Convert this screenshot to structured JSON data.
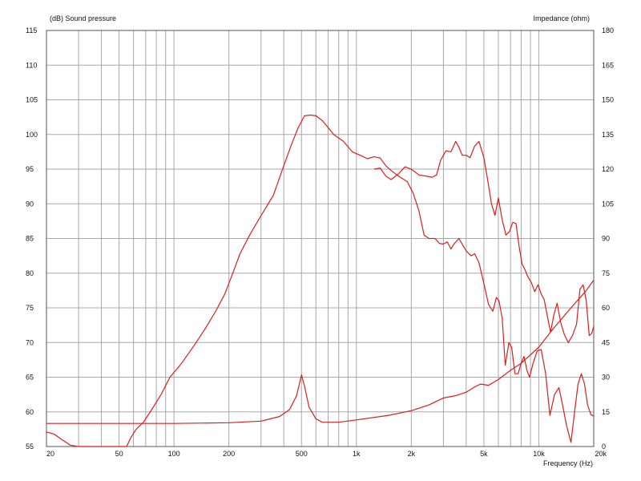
{
  "chart_data": {
    "type": "line",
    "left_axis_title": "(dB)  Sound pressure",
    "right_axis_title": "Impedance  (ohm)",
    "xlabel": "Frequency  (Hz)",
    "x_scale": "log",
    "xlim": [
      20,
      20000
    ],
    "ylim": [
      55,
      115
    ],
    "y2lim": [
      0,
      180
    ],
    "grid": true,
    "line_color": "#d81e1e",
    "grid_color": "#a8a8a8",
    "x_ticks": [
      {
        "value": 20,
        "label": "20"
      },
      {
        "value": 50,
        "label": "50"
      },
      {
        "value": 100,
        "label": "100"
      },
      {
        "value": 200,
        "label": "200"
      },
      {
        "value": 500,
        "label": "500"
      },
      {
        "value": 1000,
        "label": "1k"
      },
      {
        "value": 2000,
        "label": "2k"
      },
      {
        "value": 5000,
        "label": "5k"
      },
      {
        "value": 10000,
        "label": "10k"
      },
      {
        "value": 20000,
        "label": "20k"
      }
    ],
    "y_ticks": [
      "115",
      "110",
      "105",
      "100",
      "95",
      "90",
      "85",
      "80",
      "75",
      "70",
      "65",
      "60",
      "55"
    ],
    "y2_ticks": [
      "180",
      "165",
      "150",
      "135",
      "120",
      "105",
      "90",
      "75",
      "60",
      "45",
      "30",
      "15",
      "0"
    ],
    "series": [
      {
        "axis": "left",
        "points": [
          [
            20,
            57.1
          ],
          [
            22,
            56.8
          ],
          [
            24,
            56.1
          ],
          [
            27,
            55.2
          ],
          [
            30,
            55
          ],
          [
            40,
            55
          ],
          [
            55,
            55
          ],
          [
            58,
            56.3
          ],
          [
            62,
            57.5
          ],
          [
            68,
            58.5
          ],
          [
            75,
            60.2
          ],
          [
            85,
            62.5
          ],
          [
            95,
            65
          ],
          [
            110,
            67
          ],
          [
            130,
            69.7
          ],
          [
            150,
            72.2
          ],
          [
            170,
            74.6
          ],
          [
            190,
            77
          ],
          [
            210,
            80
          ],
          [
            230,
            82.8
          ],
          [
            260,
            85.5
          ],
          [
            300,
            88.3
          ],
          [
            350,
            91.2
          ],
          [
            400,
            95.5
          ],
          [
            440,
            98.5
          ],
          [
            480,
            101
          ],
          [
            520,
            102.7
          ],
          [
            560,
            102.8
          ],
          [
            600,
            102.7
          ],
          [
            650,
            102
          ],
          [
            700,
            101
          ],
          [
            750,
            100
          ],
          [
            850,
            99
          ],
          [
            950,
            97.5
          ],
          [
            1050,
            97
          ],
          [
            1150,
            96.5
          ],
          [
            1250,
            96.8
          ],
          [
            1350,
            96.6
          ],
          [
            1450,
            95.5
          ],
          [
            1550,
            94.8
          ],
          [
            1700,
            94
          ],
          [
            1900,
            93.2
          ],
          [
            2050,
            91.5
          ],
          [
            2200,
            89
          ],
          [
            2350,
            85.5
          ],
          [
            2500,
            85
          ],
          [
            2700,
            85
          ],
          [
            2850,
            84.3
          ],
          [
            3000,
            84.2
          ],
          [
            3150,
            84.5
          ],
          [
            3300,
            83.5
          ],
          [
            3450,
            84.3
          ],
          [
            3650,
            85
          ],
          [
            3800,
            84.2
          ],
          [
            4000,
            83.2
          ],
          [
            4250,
            82.5
          ],
          [
            4450,
            82.8
          ],
          [
            4700,
            81.5
          ],
          [
            5000,
            78.5
          ],
          [
            5300,
            75.5
          ],
          [
            5600,
            74.5
          ],
          [
            5850,
            76.5
          ],
          [
            6050,
            76
          ],
          [
            6300,
            73.5
          ],
          [
            6550,
            66.7
          ],
          [
            6850,
            70
          ],
          [
            7100,
            69.3
          ],
          [
            7400,
            65.5
          ],
          [
            7700,
            65.5
          ],
          [
            8000,
            67
          ],
          [
            8300,
            68
          ],
          [
            8600,
            66
          ],
          [
            8900,
            65
          ],
          [
            9300,
            67
          ],
          [
            9800,
            68.8
          ],
          [
            10300,
            69
          ],
          [
            10900,
            65.5
          ],
          [
            11500,
            59.5
          ],
          [
            12200,
            62.5
          ],
          [
            12900,
            63.5
          ],
          [
            13500,
            61
          ],
          [
            14200,
            58
          ],
          [
            15000,
            55.6
          ],
          [
            15700,
            60
          ],
          [
            16400,
            64
          ],
          [
            17100,
            65.5
          ],
          [
            17800,
            64
          ],
          [
            18500,
            61
          ],
          [
            19300,
            59.6
          ],
          [
            20000,
            59.4
          ]
        ]
      },
      {
        "axis": "right",
        "points": [
          [
            20,
            10
          ],
          [
            100,
            10
          ],
          [
            200,
            10.3
          ],
          [
            300,
            11
          ],
          [
            380,
            13
          ],
          [
            430,
            16
          ],
          [
            470,
            22
          ],
          [
            500,
            31
          ],
          [
            520,
            26
          ],
          [
            550,
            17
          ],
          [
            600,
            12
          ],
          [
            650,
            10.5
          ],
          [
            800,
            10.5
          ],
          [
            1000,
            11.5
          ],
          [
            1500,
            13.5
          ],
          [
            2000,
            15.5
          ],
          [
            2500,
            18
          ],
          [
            3000,
            21
          ],
          [
            3500,
            22
          ],
          [
            4000,
            23.5
          ],
          [
            4500,
            26
          ],
          [
            4800,
            27
          ],
          [
            5300,
            26.5
          ],
          [
            6000,
            29
          ],
          [
            7000,
            33
          ],
          [
            8000,
            36
          ],
          [
            10000,
            43
          ],
          [
            12000,
            51
          ],
          [
            15000,
            60
          ],
          [
            18000,
            67
          ],
          [
            20000,
            72
          ]
        ]
      },
      {
        "axis": "right",
        "points": [
          [
            1250,
            120
          ],
          [
            1350,
            120.5
          ],
          [
            1450,
            117
          ],
          [
            1550,
            115.5
          ],
          [
            1700,
            118
          ],
          [
            1850,
            121
          ],
          [
            2000,
            120
          ],
          [
            2200,
            117.5
          ],
          [
            2400,
            117
          ],
          [
            2600,
            116.5
          ],
          [
            2750,
            117.5
          ],
          [
            2900,
            124
          ],
          [
            3100,
            128
          ],
          [
            3300,
            127.5
          ],
          [
            3500,
            132
          ],
          [
            3650,
            129.5
          ],
          [
            3800,
            126
          ],
          [
            4000,
            126
          ],
          [
            4200,
            125
          ],
          [
            4450,
            130
          ],
          [
            4700,
            132
          ],
          [
            5000,
            125
          ],
          [
            5250,
            115
          ],
          [
            5500,
            105
          ],
          [
            5750,
            100
          ],
          [
            6000,
            107.5
          ],
          [
            6300,
            98
          ],
          [
            6600,
            91.5
          ],
          [
            6900,
            93
          ],
          [
            7200,
            97
          ],
          [
            7500,
            96.5
          ],
          [
            7800,
            86.5
          ],
          [
            8100,
            79
          ],
          [
            8400,
            76.5
          ],
          [
            8700,
            73.5
          ],
          [
            9100,
            71
          ],
          [
            9500,
            67
          ],
          [
            9900,
            70
          ],
          [
            10300,
            66
          ],
          [
            10700,
            63.5
          ],
          [
            11100,
            57
          ],
          [
            11600,
            49.5
          ],
          [
            12100,
            57
          ],
          [
            12600,
            62
          ],
          [
            13200,
            53.5
          ],
          [
            13800,
            48.5
          ],
          [
            14500,
            45
          ],
          [
            15300,
            48
          ],
          [
            16100,
            53
          ],
          [
            16800,
            68
          ],
          [
            17500,
            70
          ],
          [
            18200,
            63
          ],
          [
            18900,
            48
          ],
          [
            19500,
            49
          ],
          [
            20000,
            52
          ]
        ]
      }
    ]
  }
}
